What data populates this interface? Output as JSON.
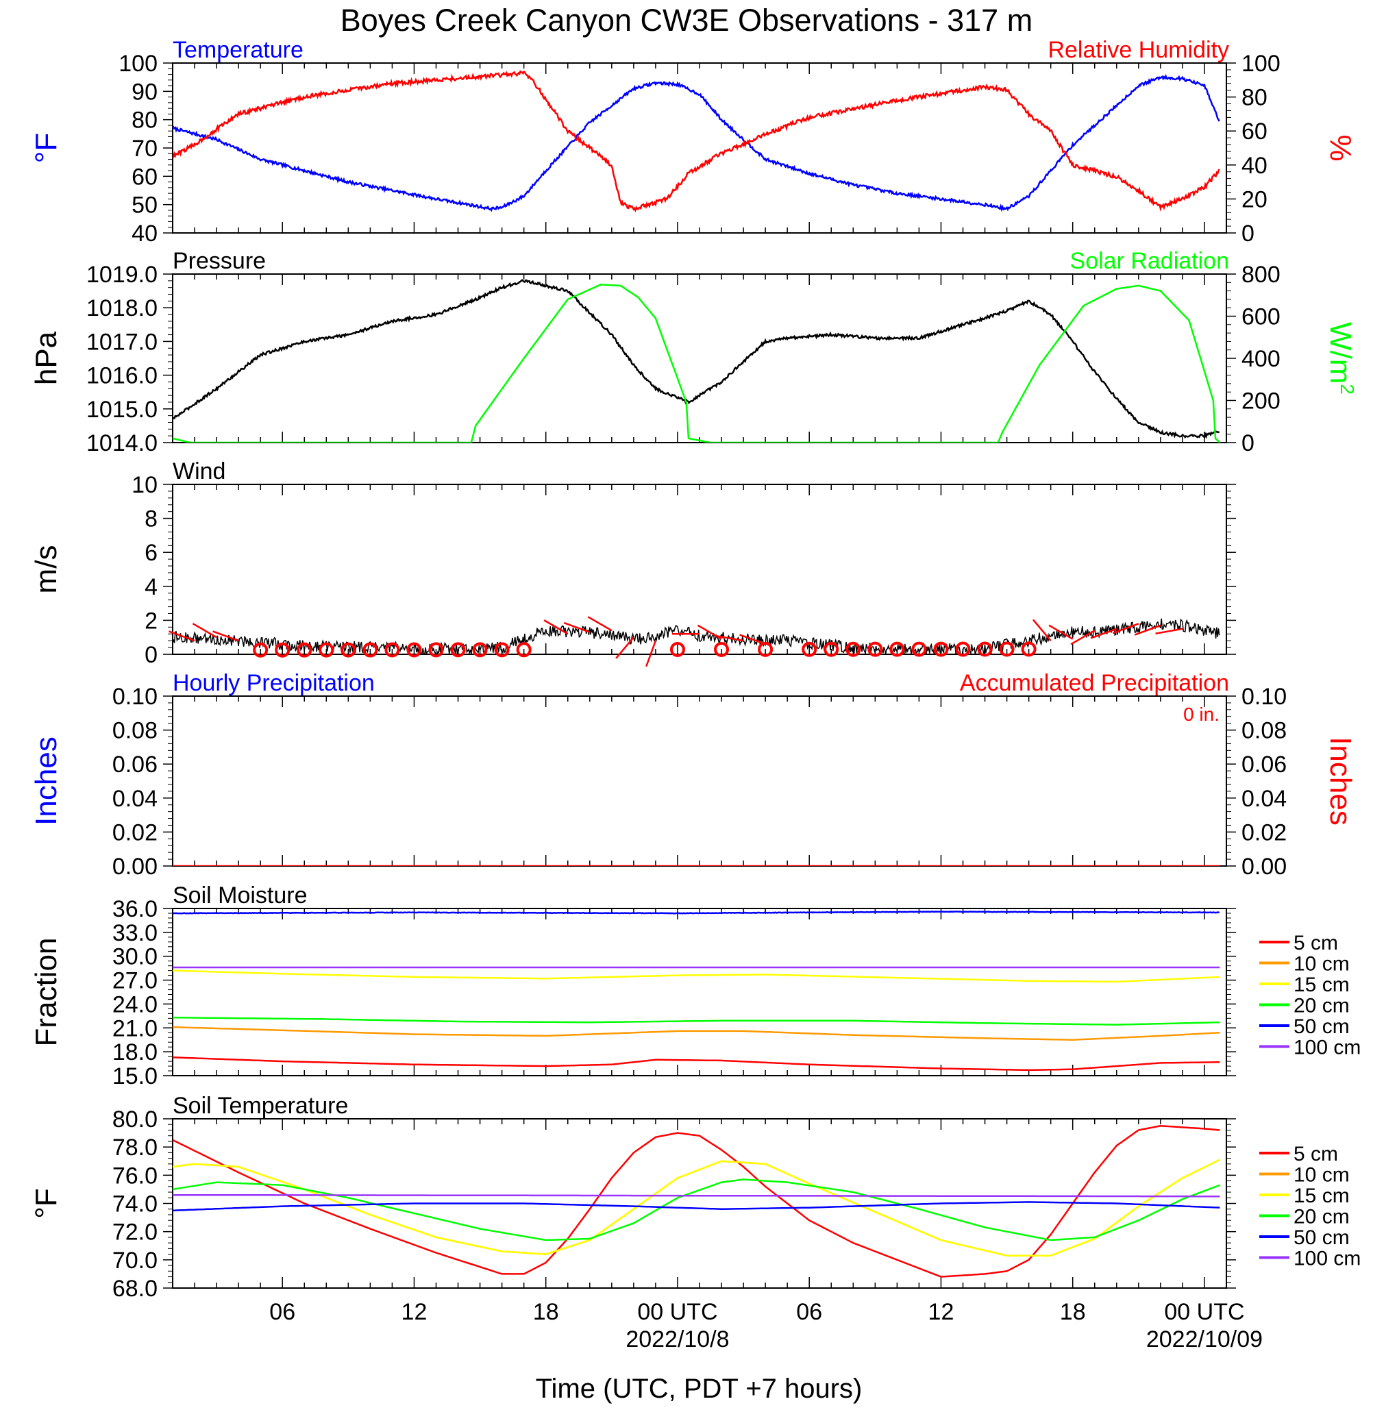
{
  "title": "Boyes Creek Canyon CW3E Observations - 317 m",
  "colors": {
    "blue": "#0000ff",
    "red": "#ff0000",
    "green": "#00ff00",
    "black": "#000000",
    "orange": "#ff9900",
    "yellow": "#ffff00",
    "purple": "#9933ff"
  },
  "xaxis": {
    "label": "Time (UTC, PDT +7 hours)",
    "range_hours": [
      -23,
      25
    ],
    "ticks": [
      {
        "hour": -18,
        "label": "06"
      },
      {
        "hour": -12,
        "label": "12"
      },
      {
        "hour": -6,
        "label": "18"
      },
      {
        "hour": 0,
        "label": "00 UTC",
        "date": "2022/10/8"
      },
      {
        "hour": 6,
        "label": "06"
      },
      {
        "hour": 12,
        "label": "12"
      },
      {
        "hour": 18,
        "label": "18"
      },
      {
        "hour": 24,
        "label": "00 UTC",
        "date": "2022/10/09"
      }
    ]
  },
  "chart_data": [
    {
      "id": "temp_rh",
      "type": "line",
      "left_title": "Temperature",
      "right_title": "Relative Humidity",
      "ylabel_left": "°F",
      "ylabel_right": "%",
      "ylim_left": [
        40,
        100
      ],
      "yticks_left": [
        "40",
        "50",
        "60",
        "70",
        "80",
        "90",
        "100"
      ],
      "ylim_right": [
        0,
        100
      ],
      "yticks_right": [
        "0",
        "20",
        "40",
        "60",
        "80",
        "100"
      ],
      "series": [
        {
          "name": "Temperature",
          "axis": "left",
          "color": "#0000ff",
          "noise": 0.5,
          "x": [
            -23,
            -21,
            -19,
            -17,
            -15,
            -13,
            -11,
            -9.5,
            -8.5,
            -8,
            -7,
            -6,
            -4,
            -2,
            -1,
            0,
            1,
            2,
            3,
            4,
            6,
            8,
            10,
            12,
            14,
            15,
            16,
            17,
            18,
            20,
            21,
            22,
            23,
            24,
            24.7
          ],
          "y": [
            77,
            73,
            66,
            62,
            58,
            55,
            52,
            50,
            48.5,
            49,
            53,
            62,
            79,
            91,
            93,
            92.5,
            89,
            80,
            73,
            66,
            61,
            57,
            54,
            52,
            50,
            48.5,
            53,
            62,
            71,
            85,
            92,
            95,
            94.5,
            92,
            79
          ]
        },
        {
          "name": "Relative Humidity",
          "axis": "right",
          "color": "#ff0000",
          "noise": 1.2,
          "x": [
            -23,
            -22,
            -20,
            -17,
            -13,
            -9,
            -7,
            -6.5,
            -5,
            -3,
            -2.6,
            -2,
            -0.5,
            0.5,
            2,
            3,
            4,
            5,
            6,
            10,
            14,
            15,
            16,
            17,
            18,
            20,
            21,
            22,
            23,
            24,
            24.7
          ],
          "y": [
            45,
            52,
            70,
            80,
            88,
            92,
            94,
            88,
            60,
            40,
            18,
            14,
            20,
            35,
            47,
            52,
            58,
            63,
            68,
            78,
            86,
            84,
            70,
            60,
            40,
            33,
            25,
            15,
            20,
            27,
            37
          ]
        }
      ]
    },
    {
      "id": "pres_solar",
      "type": "line",
      "left_title": "Pressure",
      "right_title": "Solar Radiation",
      "ylabel_left": "hPa",
      "ylabel_right": "W/m2",
      "ylim_left": [
        1014.0,
        1019.0
      ],
      "yticks_left": [
        "1014.0",
        "1015.0",
        "1016.0",
        "1017.0",
        "1018.0",
        "1019.0"
      ],
      "ylim_right": [
        0,
        800
      ],
      "yticks_right": [
        "0",
        "200",
        "400",
        "600",
        "800"
      ],
      "series": [
        {
          "name": "Pressure",
          "axis": "left",
          "color": "#000000",
          "noise": 0.04,
          "x": [
            -23,
            -21,
            -19,
            -17,
            -15,
            -13,
            -11,
            -9,
            -8,
            -7,
            -5,
            -3,
            -2,
            -1,
            0.5,
            2,
            3,
            4,
            5,
            7,
            9,
            11,
            13,
            15,
            16,
            17,
            18,
            19,
            20,
            21,
            22,
            23,
            24,
            24.5,
            24.7
          ],
          "y": [
            1014.7,
            1015.6,
            1016.6,
            1017.0,
            1017.2,
            1017.6,
            1017.8,
            1018.3,
            1018.6,
            1018.8,
            1018.5,
            1017.2,
            1016.3,
            1015.6,
            1015.2,
            1015.8,
            1016.4,
            1017.0,
            1017.1,
            1017.2,
            1017.1,
            1017.1,
            1017.5,
            1017.9,
            1018.2,
            1017.8,
            1017.0,
            1016.1,
            1015.3,
            1014.6,
            1014.3,
            1014.2,
            1014.2,
            1014.3,
            1014.3
          ]
        },
        {
          "name": "Solar Radiation",
          "axis": "right",
          "color": "#00ff00",
          "noise": 0,
          "x": [
            -23,
            -22.2,
            -9.4,
            -9.2,
            -7,
            -5,
            -3.5,
            -2.6,
            -1.8,
            -1,
            0.4,
            0.5,
            1.5,
            14.6,
            14.8,
            16.5,
            18.5,
            20,
            21,
            22,
            23.3,
            24.4,
            24.5,
            24.7
          ],
          "y": [
            20,
            0,
            0,
            80,
            400,
            680,
            750,
            745,
            690,
            590,
            190,
            20,
            0,
            0,
            50,
            370,
            650,
            730,
            745,
            720,
            580,
            200,
            20,
            0
          ]
        }
      ]
    },
    {
      "id": "wind",
      "type": "line",
      "left_title": "Wind",
      "ylabel_left": "m/s",
      "ylim_left": [
        0,
        10
      ],
      "yticks_left": [
        "0",
        "2",
        "4",
        "6",
        "8",
        "10"
      ],
      "series": [
        {
          "name": "Wind",
          "axis": "left",
          "color": "#000000",
          "noise": 0.35,
          "x": [
            -23,
            -20,
            -17,
            -14,
            -11,
            -8,
            -6,
            -4,
            -2,
            -1,
            0,
            1,
            3,
            5,
            8,
            11,
            14,
            16,
            18,
            20,
            22,
            23,
            24,
            24.7
          ],
          "y": [
            1.0,
            0.8,
            0.5,
            0.4,
            0.3,
            0.4,
            1.4,
            1.3,
            0.9,
            1.0,
            1.5,
            1.1,
            0.9,
            0.8,
            0.4,
            0.3,
            0.3,
            0.8,
            1.3,
            1.4,
            1.8,
            1.7,
            1.4,
            1.2
          ]
        }
      ],
      "barbs": [
        {
          "h": -22,
          "s": 0.8,
          "d": 290
        },
        {
          "h": -21,
          "s": 1.0,
          "d": 300
        },
        {
          "h": -20,
          "s": 0.8,
          "d": 290
        },
        {
          "h": -5,
          "s": 1.2,
          "d": 300
        },
        {
          "h": -4,
          "s": 1.3,
          "d": 290
        },
        {
          "h": -3,
          "s": 1.4,
          "d": 300
        },
        {
          "h": -2,
          "s": 1.0,
          "d": 220
        },
        {
          "h": -1,
          "s": 0.8,
          "d": 200
        },
        {
          "h": 1,
          "s": 1.2,
          "d": 270
        },
        {
          "h": 2,
          "s": 0.9,
          "d": 300
        },
        {
          "h": 3,
          "s": 0.8,
          "d": 280
        },
        {
          "h": 4,
          "s": 0.6,
          "d": 290
        },
        {
          "h": 17,
          "s": 0.8,
          "d": 320
        },
        {
          "h": 18,
          "s": 0.9,
          "d": 300
        },
        {
          "h": 19,
          "s": 1.4,
          "d": 240
        },
        {
          "h": 20,
          "s": 1.5,
          "d": 250
        },
        {
          "h": 21,
          "s": 1.8,
          "d": 250
        },
        {
          "h": 22,
          "s": 1.7,
          "d": 250
        },
        {
          "h": 23,
          "s": 1.5,
          "d": 260
        }
      ],
      "calm_hours": [
        -19,
        -18,
        -17,
        -16,
        -15,
        -14,
        -13,
        -12,
        -11,
        -10,
        -9,
        -8,
        -7,
        0,
        2,
        4,
        6,
        7,
        8,
        9,
        10,
        11,
        12,
        13,
        14,
        15,
        16
      ]
    },
    {
      "id": "precip",
      "type": "line",
      "left_title": "Hourly Precipitation",
      "right_title": "Accumulated Precipitation",
      "total_text": "0 in.",
      "ylabel_left": "Inches",
      "ylabel_right": "Inches",
      "ylim_left": [
        0,
        0.1
      ],
      "yticks_left": [
        "0.00",
        "0.02",
        "0.04",
        "0.06",
        "0.08",
        "0.10"
      ],
      "ylim_right": [
        0,
        0.1
      ],
      "yticks_right": [
        "0.00",
        "0.02",
        "0.04",
        "0.06",
        "0.08",
        "0.10"
      ],
      "series": [
        {
          "name": "Accumulated Precipitation",
          "axis": "left",
          "color": "#ff0000",
          "noise": 0,
          "x": [
            -23,
            24.7
          ],
          "y": [
            0,
            0
          ]
        }
      ]
    },
    {
      "id": "soil_moist",
      "type": "line",
      "left_title": "Soil Moisture",
      "ylabel_left": "Fraction",
      "ylim_left": [
        15,
        36
      ],
      "yticks_left": [
        "15.0",
        "18.0",
        "21.0",
        "24.0",
        "27.0",
        "30.0",
        "33.0",
        "36.0"
      ],
      "legend": [
        "5 cm",
        "10 cm",
        "15 cm",
        "20 cm",
        "50 cm",
        "100 cm"
      ],
      "series": [
        {
          "name": "5 cm",
          "axis": "left",
          "color": "#ff0000",
          "noise": 0,
          "x": [
            -23,
            -18,
            -12,
            -6,
            -3,
            -1,
            2,
            6,
            12,
            16,
            18,
            20,
            22,
            24.7
          ],
          "y": [
            17.3,
            16.8,
            16.4,
            16.2,
            16.4,
            17.0,
            16.9,
            16.4,
            15.9,
            15.7,
            15.8,
            16.2,
            16.6,
            16.7
          ]
        },
        {
          "name": "10 cm",
          "axis": "left",
          "color": "#ff9900",
          "noise": 0,
          "x": [
            -23,
            -18,
            -12,
            -6,
            0,
            3,
            8,
            14,
            18,
            22,
            24.7
          ],
          "y": [
            21.1,
            20.7,
            20.2,
            20.0,
            20.6,
            20.6,
            20.1,
            19.7,
            19.5,
            20.0,
            20.4
          ]
        },
        {
          "name": "15 cm",
          "axis": "left",
          "color": "#ffff00",
          "noise": 0,
          "x": [
            -23,
            -18,
            -12,
            -6,
            0,
            4,
            10,
            16,
            20,
            24.7
          ],
          "y": [
            28.2,
            27.8,
            27.4,
            27.2,
            27.6,
            27.7,
            27.3,
            26.9,
            26.8,
            27.4
          ]
        },
        {
          "name": "20 cm",
          "axis": "left",
          "color": "#00ff00",
          "noise": 0,
          "x": [
            -23,
            -16,
            -10,
            -4,
            2,
            8,
            14,
            20,
            24.7
          ],
          "y": [
            22.3,
            22.1,
            21.8,
            21.7,
            21.9,
            21.9,
            21.6,
            21.4,
            21.7
          ]
        },
        {
          "name": "50 cm",
          "axis": "left",
          "color": "#0000ff",
          "noise": 0.03,
          "x": [
            -23,
            -12,
            0,
            12,
            24.7
          ],
          "y": [
            35.4,
            35.5,
            35.4,
            35.6,
            35.5
          ]
        },
        {
          "name": "100 cm",
          "axis": "left",
          "color": "#9933ff",
          "noise": 0,
          "x": [
            -23,
            24.7
          ],
          "y": [
            28.6,
            28.6
          ]
        }
      ]
    },
    {
      "id": "soil_temp",
      "type": "line",
      "left_title": "Soil Temperature",
      "ylabel_left": "°F",
      "ylim_left": [
        68,
        80
      ],
      "yticks_left": [
        "68.0",
        "70.0",
        "72.0",
        "74.0",
        "76.0",
        "78.0",
        "80.0"
      ],
      "legend": [
        "5 cm",
        "10 cm",
        "15 cm",
        "20 cm",
        "50 cm",
        "100 cm"
      ],
      "series": [
        {
          "name": "5 cm",
          "axis": "left",
          "color": "#ff0000",
          "noise": 0,
          "x": [
            -23,
            -20,
            -17,
            -14,
            -11,
            -9,
            -8,
            -7,
            -6,
            -5,
            -4,
            -3,
            -2,
            -1,
            0,
            1,
            2,
            3,
            4,
            6,
            8,
            10,
            12,
            14,
            15,
            16,
            17,
            18,
            19,
            20,
            21,
            22,
            23,
            24,
            24.7
          ],
          "y": [
            78.5,
            76.2,
            74.0,
            72.2,
            70.5,
            69.5,
            69.0,
            69.0,
            69.8,
            71.5,
            73.6,
            75.8,
            77.6,
            78.7,
            79.0,
            78.8,
            77.8,
            76.6,
            75.2,
            72.8,
            71.2,
            70.0,
            68.8,
            69.0,
            69.2,
            70.0,
            71.8,
            74.0,
            76.2,
            78.1,
            79.2,
            79.5,
            79.4,
            79.3,
            79.2
          ]
        },
        {
          "name": "10 cm",
          "axis": "left",
          "color": "#ff9900",
          "noise": 0,
          "x": [
            -23,
            -22,
            -20,
            -17,
            -14,
            -11,
            -8,
            -6,
            -4,
            -2,
            0,
            2,
            4,
            6,
            9,
            12,
            15,
            17,
            19,
            21,
            23,
            24.7
          ],
          "y": [
            76.6,
            76.8,
            76.6,
            75.0,
            73.2,
            71.6,
            70.6,
            70.4,
            71.4,
            73.6,
            75.8,
            77.0,
            76.8,
            75.4,
            73.4,
            71.4,
            70.3,
            70.3,
            71.5,
            73.8,
            75.8,
            77.1
          ]
        },
        {
          "name": "15 cm",
          "axis": "left",
          "color": "#ffff00",
          "noise": 0,
          "x": [
            -23,
            -22,
            -20,
            -17,
            -14,
            -11,
            -8,
            -6,
            -4,
            -2,
            0,
            2,
            4,
            6,
            9,
            12,
            15,
            17,
            19,
            21,
            23,
            24.7
          ],
          "y": [
            76.6,
            76.8,
            76.6,
            75.0,
            73.2,
            71.6,
            70.6,
            70.4,
            71.4,
            73.6,
            75.8,
            77.0,
            76.8,
            75.4,
            73.4,
            71.4,
            70.3,
            70.3,
            71.5,
            73.8,
            75.8,
            77.1
          ]
        },
        {
          "name": "20 cm",
          "axis": "left",
          "color": "#00ff00",
          "noise": 0,
          "x": [
            -23,
            -21,
            -18,
            -15,
            -12,
            -9,
            -6,
            -4,
            -2,
            0,
            2,
            3,
            5,
            8,
            11,
            14,
            17,
            19,
            21,
            23,
            24.7
          ],
          "y": [
            75.0,
            75.5,
            75.3,
            74.4,
            73.3,
            72.2,
            71.4,
            71.5,
            72.6,
            74.4,
            75.5,
            75.7,
            75.5,
            74.8,
            73.6,
            72.3,
            71.4,
            71.6,
            72.8,
            74.3,
            75.3
          ]
        },
        {
          "name": "50 cm",
          "axis": "left",
          "color": "#0000ff",
          "noise": 0,
          "x": [
            -23,
            -18,
            -12,
            -7,
            -2,
            2,
            6,
            12,
            16,
            20,
            24.7
          ],
          "y": [
            73.5,
            73.8,
            74.0,
            74.0,
            73.8,
            73.6,
            73.7,
            74.0,
            74.1,
            74.0,
            73.7
          ]
        },
        {
          "name": "100 cm",
          "axis": "left",
          "color": "#9933ff",
          "noise": 0,
          "x": [
            -23,
            24.7
          ],
          "y": [
            74.6,
            74.5
          ]
        }
      ]
    }
  ]
}
